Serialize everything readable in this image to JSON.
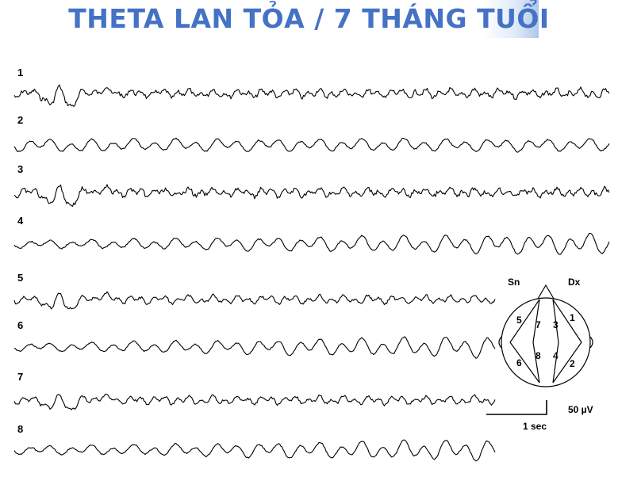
{
  "title": "THETA LAN TỎA / 7 THÁNG TUỔI",
  "channels": [
    {
      "label": "1",
      "kind": "fast-artifact"
    },
    {
      "label": "2",
      "kind": "slow"
    },
    {
      "label": "3",
      "kind": "fast-artifact"
    },
    {
      "label": "4",
      "kind": "slow-rising"
    },
    {
      "label": "5",
      "kind": "medium-artifact"
    },
    {
      "label": "6",
      "kind": "slow-rising"
    },
    {
      "label": "7",
      "kind": "medium-artifact"
    },
    {
      "label": "8",
      "kind": "slow-rising"
    }
  ],
  "montage": {
    "left_label": "Sn",
    "right_label": "Dx",
    "electrode_numbers": [
      "5",
      "7",
      "3",
      "1",
      "6",
      "8",
      "4",
      "2"
    ]
  },
  "scale": {
    "amplitude_label": "50 µV",
    "time_label": "1 sec"
  },
  "colors": {
    "title": "#4472c4",
    "trace": "#000000"
  }
}
